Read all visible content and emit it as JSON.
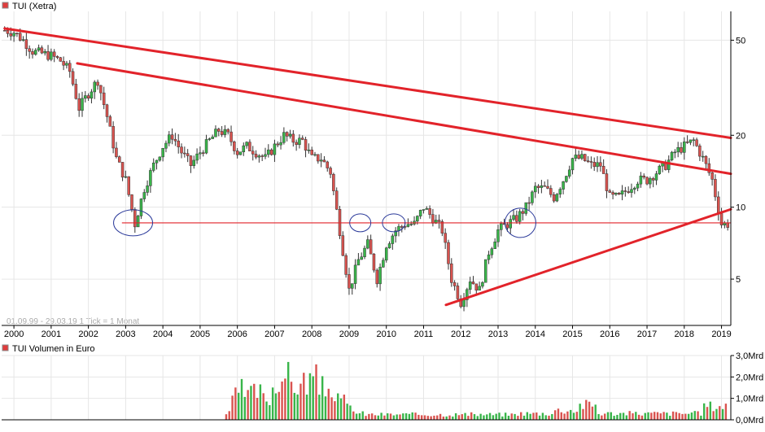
{
  "legend": {
    "price_label": "TUI (Xetra)",
    "volume_label": "TUI Volumen in Euro",
    "swatch_color": "#e03c3c"
  },
  "info_text": "01.09.99 - 29.03.19   1 Tick = 1 Monat",
  "colors": {
    "up": "#39b54a",
    "down": "#d9534f",
    "trendline": "#e2232a",
    "support": "#e2232a",
    "circle": "#2b3a9a",
    "grid": "#e6e6e6",
    "axis": "#000000"
  },
  "chart_data": [
    {
      "type": "candlestick",
      "title": "TUI (Xetra)",
      "x_range": [
        1999.67,
        2019.25
      ],
      "y_scale": "log",
      "y_ticks": [
        5,
        10,
        20,
        50
      ],
      "x_ticks": [
        "2000",
        "2001",
        "2002",
        "2003",
        "2004",
        "2005",
        "2006",
        "2007",
        "2008",
        "2009",
        "2010",
        "2011",
        "2012",
        "2013",
        "2014",
        "2015",
        "2016",
        "2017",
        "2018",
        "2019"
      ],
      "grid": true,
      "series": [
        {
          "values": [
            [
              1999.75,
              55
            ],
            [
              2000.0,
              54
            ],
            [
              2000.25,
              50
            ],
            [
              2000.5,
              45
            ],
            [
              2000.75,
              44
            ],
            [
              2001.0,
              43
            ],
            [
              2001.25,
              41
            ],
            [
              2001.5,
              37
            ],
            [
              2001.75,
              26
            ],
            [
              2002.0,
              30
            ],
            [
              2002.25,
              34
            ],
            [
              2002.5,
              24
            ],
            [
              2002.75,
              16
            ],
            [
              2003.0,
              13
            ],
            [
              2003.25,
              8.5
            ],
            [
              2003.5,
              12
            ],
            [
              2003.75,
              15
            ],
            [
              2004.0,
              18
            ],
            [
              2004.25,
              20
            ],
            [
              2004.5,
              17
            ],
            [
              2004.75,
              15
            ],
            [
              2005.0,
              17
            ],
            [
              2005.25,
              19
            ],
            [
              2005.5,
              21
            ],
            [
              2005.75,
              20
            ],
            [
              2006.0,
              17
            ],
            [
              2006.25,
              18
            ],
            [
              2006.5,
              17
            ],
            [
              2006.75,
              16
            ],
            [
              2007.0,
              18
            ],
            [
              2007.25,
              20
            ],
            [
              2007.5,
              19
            ],
            [
              2007.75,
              19
            ],
            [
              2008.0,
              16
            ],
            [
              2008.25,
              16
            ],
            [
              2008.5,
              14
            ],
            [
              2008.75,
              8
            ],
            [
              2009.0,
              4.5
            ],
            [
              2009.25,
              6
            ],
            [
              2009.5,
              7
            ],
            [
              2009.75,
              5
            ],
            [
              2010.0,
              7
            ],
            [
              2010.25,
              8
            ],
            [
              2010.5,
              8.5
            ],
            [
              2010.75,
              8.5
            ],
            [
              2011.0,
              10
            ],
            [
              2011.25,
              9
            ],
            [
              2011.5,
              8
            ],
            [
              2011.75,
              5
            ],
            [
              2012.0,
              4
            ],
            [
              2012.25,
              5
            ],
            [
              2012.5,
              4.5
            ],
            [
              2012.75,
              6.5
            ],
            [
              2013.0,
              8
            ],
            [
              2013.25,
              8.5
            ],
            [
              2013.5,
              9
            ],
            [
              2013.75,
              10
            ],
            [
              2014.0,
              12
            ],
            [
              2014.25,
              12
            ],
            [
              2014.5,
              11
            ],
            [
              2014.75,
              13
            ],
            [
              2015.0,
              16
            ],
            [
              2015.25,
              16
            ],
            [
              2015.5,
              15
            ],
            [
              2015.75,
              15
            ],
            [
              2016.0,
              11
            ],
            [
              2016.25,
              11
            ],
            [
              2016.5,
              12
            ],
            [
              2016.75,
              13
            ],
            [
              2017.0,
              13
            ],
            [
              2017.25,
              14
            ],
            [
              2017.5,
              15
            ],
            [
              2017.75,
              17
            ],
            [
              2018.0,
              18
            ],
            [
              2018.25,
              19
            ],
            [
              2018.5,
              16
            ],
            [
              2018.75,
              13
            ],
            [
              2019.0,
              8.5
            ],
            [
              2019.17,
              8.5
            ]
          ]
        }
      ]
    },
    {
      "type": "bar",
      "title": "TUI Volumen in Euro",
      "x_range": [
        1999.67,
        2019.25
      ],
      "y_range": [
        0,
        3.0
      ],
      "y_ticks": [
        "0,0Mrd",
        "1,0Mrd",
        "2,0Mrd",
        "3,0Mrd"
      ],
      "series": [
        {
          "values": [
            [
              2005.75,
              0.3
            ],
            [
              2005.83,
              1.0
            ],
            [
              2005.92,
              1.1
            ],
            [
              2006.0,
              1.4
            ],
            [
              2006.25,
              1.2
            ],
            [
              2006.5,
              1.3
            ],
            [
              2006.75,
              1.0
            ],
            [
              2007.0,
              1.5
            ],
            [
              2007.17,
              2.1
            ],
            [
              2007.33,
              2.0
            ],
            [
              2007.5,
              1.7
            ],
            [
              2007.67,
              1.6
            ],
            [
              2007.83,
              1.8
            ],
            [
              2008.0,
              1.9
            ],
            [
              2008.25,
              1.5
            ],
            [
              2008.5,
              1.4
            ],
            [
              2008.75,
              0.9
            ],
            [
              2009.0,
              0.6
            ],
            [
              2009.25,
              0.3
            ],
            [
              2009.5,
              0.25
            ],
            [
              2010.0,
              0.25
            ],
            [
              2011.0,
              0.25
            ],
            [
              2012.0,
              0.25
            ],
            [
              2013.0,
              0.25
            ],
            [
              2014.0,
              0.3
            ],
            [
              2015.0,
              0.45
            ],
            [
              2015.25,
              0.7
            ],
            [
              2016.0,
              0.3
            ],
            [
              2017.0,
              0.3
            ],
            [
              2018.0,
              0.3
            ],
            [
              2019.0,
              0.65
            ]
          ]
        }
      ]
    }
  ]
}
